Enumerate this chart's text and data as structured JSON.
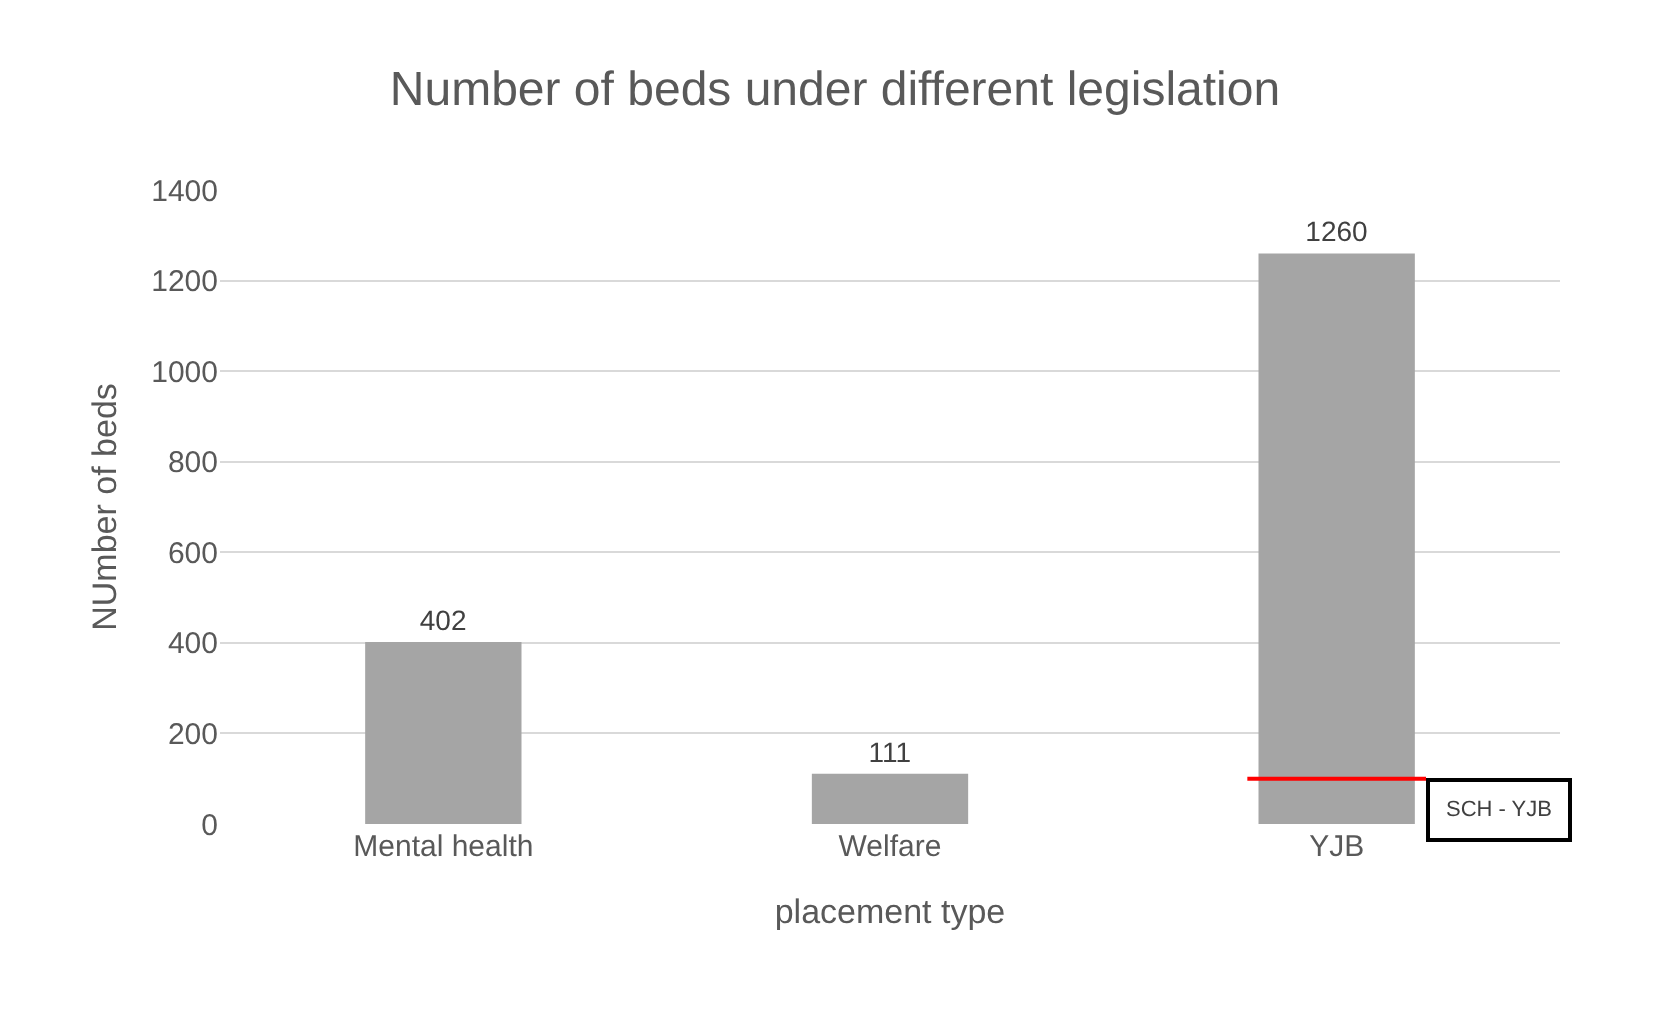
{
  "chart_data": {
    "type": "bar",
    "title": "Number of beds under different legislation",
    "xlabel": "placement type",
    "ylabel": "NUmber of beds",
    "categories": [
      "Mental health",
      "Welfare",
      "YJB"
    ],
    "values": [
      402,
      111,
      1260
    ],
    "color": "#a5a5a5",
    "ylim": [
      0,
      1400
    ],
    "yticks": [
      0,
      200,
      400,
      600,
      800,
      1000,
      1200,
      1400
    ],
    "grid": "y",
    "data_labels": true,
    "ref_lines": [
      {
        "axis": "y",
        "value": 100,
        "label": "SCH - YJB",
        "color": "#ff0000"
      }
    ]
  }
}
